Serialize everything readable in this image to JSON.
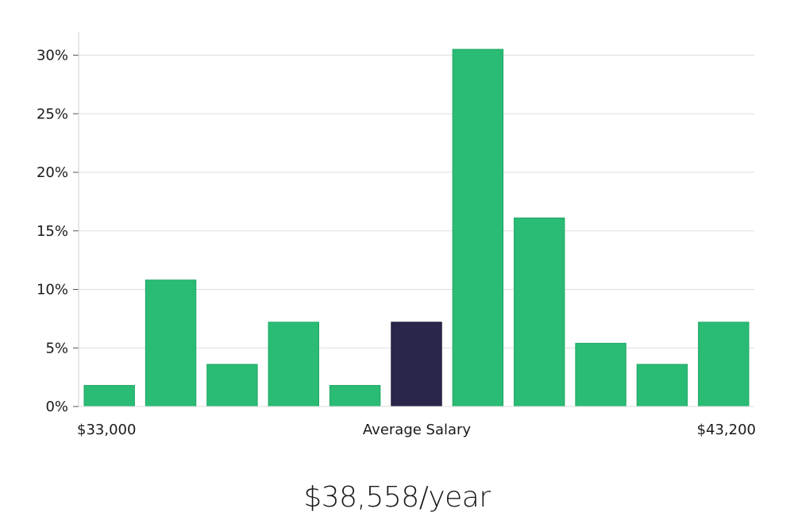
{
  "chart_data": {
    "type": "bar",
    "title": "",
    "xlabel": "",
    "ylabel": "",
    "x_labels": {
      "left": "$33,000",
      "center": "Average Salary",
      "right": "$43,200"
    },
    "yticks": [
      "0%",
      "5%",
      "10%",
      "15%",
      "20%",
      "25%",
      "30%"
    ],
    "ytick_values": [
      0,
      5,
      10,
      15,
      20,
      25,
      30
    ],
    "ylim": [
      0,
      32
    ],
    "grid": true,
    "values": [
      1.8,
      10.8,
      3.6,
      7.2,
      1.8,
      7.2,
      30.5,
      16.1,
      5.4,
      3.6,
      7.2
    ],
    "highlight_index": 5,
    "colors": {
      "bar": "#2abb74",
      "highlight": "#28264a",
      "grid": "#dddddd",
      "axis": "#cccccc"
    }
  },
  "summary": "$38,558/year"
}
